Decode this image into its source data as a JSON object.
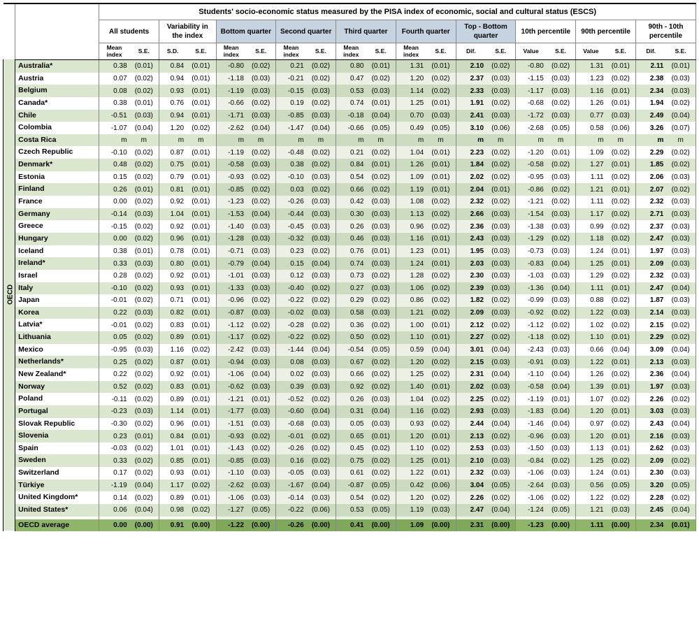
{
  "title": "Students' socio-economic status measured by the PISA index of economic, social and cultural status (ESCS)",
  "side_label": "OECD",
  "groups": [
    {
      "label": "All students",
      "sub": [
        "Mean index",
        "S.E."
      ],
      "shaded": false,
      "bold": [
        false,
        false
      ]
    },
    {
      "label": "Variability in the index",
      "sub": [
        "S.D.",
        "S.E."
      ],
      "shaded": false,
      "bold": [
        false,
        false
      ]
    },
    {
      "label": "Bottom quarter",
      "sub": [
        "Mean index",
        "S.E."
      ],
      "shaded": true,
      "bold": [
        false,
        false
      ]
    },
    {
      "label": "Second quarter",
      "sub": [
        "Mean index",
        "S.E."
      ],
      "shaded": true,
      "bold": [
        false,
        false
      ]
    },
    {
      "label": "Third quarter",
      "sub": [
        "Mean index",
        "S.E."
      ],
      "shaded": true,
      "bold": [
        false,
        false
      ]
    },
    {
      "label": "Fourth quarter",
      "sub": [
        "Mean index",
        "S.E."
      ],
      "shaded": true,
      "bold": [
        false,
        false
      ]
    },
    {
      "label": "Top - Bottom quarter",
      "sub": [
        "Dif.",
        "S.E."
      ],
      "shaded": true,
      "bold": [
        true,
        false
      ]
    },
    {
      "label": "10th percentile",
      "sub": [
        "Value",
        "S.E."
      ],
      "shaded": false,
      "bold": [
        false,
        false
      ]
    },
    {
      "label": "90th percentile",
      "sub": [
        "Value",
        "S.E."
      ],
      "shaded": false,
      "bold": [
        false,
        false
      ]
    },
    {
      "label": "90th - 10th percentile",
      "sub": [
        "Dif.",
        "S.E."
      ],
      "shaded": false,
      "bold": [
        true,
        false
      ]
    }
  ],
  "shaded_groups": [
    2,
    3,
    4,
    5,
    6
  ],
  "bold_value_groups": [
    6,
    9
  ],
  "colors": {
    "stripe": "#dbe6cf",
    "shade_col": "#ecf0e5",
    "stripe_shade": "#cddcc0",
    "avg": "#8fb56a",
    "head_shade": "#c6d3e0"
  },
  "rows": [
    {
      "c": "Australia*",
      "d": [
        "0.38",
        "(0.01)",
        "0.84",
        "(0.01)",
        "-0.80",
        "(0.02)",
        "0.21",
        "(0.02)",
        "0.80",
        "(0.01)",
        "1.31",
        "(0.01)",
        "2.10",
        "(0.02)",
        "-0.80",
        "(0.02)",
        "1.31",
        "(0.01)",
        "2.11",
        "(0.01)"
      ]
    },
    {
      "c": "Austria",
      "d": [
        "0.07",
        "(0.02)",
        "0.94",
        "(0.01)",
        "-1.18",
        "(0.03)",
        "-0.21",
        "(0.02)",
        "0.47",
        "(0.02)",
        "1.20",
        "(0.02)",
        "2.37",
        "(0.03)",
        "-1.15",
        "(0.03)",
        "1.23",
        "(0.02)",
        "2.38",
        "(0.03)"
      ]
    },
    {
      "c": "Belgium",
      "d": [
        "0.08",
        "(0.02)",
        "0.93",
        "(0.01)",
        "-1.19",
        "(0.03)",
        "-0.15",
        "(0.03)",
        "0.53",
        "(0.03)",
        "1.14",
        "(0.02)",
        "2.33",
        "(0.03)",
        "-1.17",
        "(0.03)",
        "1.16",
        "(0.01)",
        "2.34",
        "(0.03)"
      ]
    },
    {
      "c": "Canada*",
      "d": [
        "0.38",
        "(0.01)",
        "0.76",
        "(0.01)",
        "-0.66",
        "(0.02)",
        "0.19",
        "(0.02)",
        "0.74",
        "(0.01)",
        "1.25",
        "(0.01)",
        "1.91",
        "(0.02)",
        "-0.68",
        "(0.02)",
        "1.26",
        "(0.01)",
        "1.94",
        "(0.02)"
      ]
    },
    {
      "c": "Chile",
      "d": [
        "-0.51",
        "(0.03)",
        "0.94",
        "(0.01)",
        "-1.71",
        "(0.03)",
        "-0.85",
        "(0.03)",
        "-0.18",
        "(0.04)",
        "0.70",
        "(0.03)",
        "2.41",
        "(0.03)",
        "-1.72",
        "(0.03)",
        "0.77",
        "(0.03)",
        "2.49",
        "(0.04)"
      ]
    },
    {
      "c": "Colombia",
      "d": [
        "-1.07",
        "(0.04)",
        "1.20",
        "(0.02)",
        "-2.62",
        "(0.04)",
        "-1.47",
        "(0.04)",
        "-0.66",
        "(0.05)",
        "0.49",
        "(0.05)",
        "3.10",
        "(0.06)",
        "-2.68",
        "(0.05)",
        "0.58",
        "(0.06)",
        "3.26",
        "(0.07)"
      ]
    },
    {
      "c": "Costa Rica",
      "d": [
        "m",
        "m",
        "m",
        "m",
        "m",
        "m",
        "m",
        "m",
        "m",
        "m",
        "m",
        "m",
        "m",
        "m",
        "m",
        "m",
        "m",
        "m",
        "m",
        "m"
      ]
    },
    {
      "c": "Czech Republic",
      "d": [
        "-0.10",
        "(0.02)",
        "0.87",
        "(0.01)",
        "-1.19",
        "(0.02)",
        "-0.48",
        "(0.02)",
        "0.21",
        "(0.02)",
        "1.04",
        "(0.01)",
        "2.23",
        "(0.02)",
        "-1.20",
        "(0.01)",
        "1.09",
        "(0.02)",
        "2.29",
        "(0.02)"
      ]
    },
    {
      "c": "Denmark*",
      "d": [
        "0.48",
        "(0.02)",
        "0.75",
        "(0.01)",
        "-0.58",
        "(0.03)",
        "0.38",
        "(0.02)",
        "0.84",
        "(0.01)",
        "1.26",
        "(0.01)",
        "1.84",
        "(0.02)",
        "-0.58",
        "(0.02)",
        "1.27",
        "(0.01)",
        "1.85",
        "(0.02)"
      ]
    },
    {
      "c": "Estonia",
      "d": [
        "0.15",
        "(0.02)",
        "0.79",
        "(0.01)",
        "-0.93",
        "(0.02)",
        "-0.10",
        "(0.03)",
        "0.54",
        "(0.02)",
        "1.09",
        "(0.01)",
        "2.02",
        "(0.02)",
        "-0.95",
        "(0.03)",
        "1.11",
        "(0.02)",
        "2.06",
        "(0.03)"
      ]
    },
    {
      "c": "Finland",
      "d": [
        "0.26",
        "(0.01)",
        "0.81",
        "(0.01)",
        "-0.85",
        "(0.02)",
        "0.03",
        "(0.02)",
        "0.66",
        "(0.02)",
        "1.19",
        "(0.01)",
        "2.04",
        "(0.01)",
        "-0.86",
        "(0.02)",
        "1.21",
        "(0.01)",
        "2.07",
        "(0.02)"
      ]
    },
    {
      "c": "France",
      "d": [
        "0.00",
        "(0.02)",
        "0.92",
        "(0.01)",
        "-1.23",
        "(0.02)",
        "-0.26",
        "(0.03)",
        "0.42",
        "(0.03)",
        "1.08",
        "(0.02)",
        "2.32",
        "(0.02)",
        "-1.21",
        "(0.02)",
        "1.11",
        "(0.02)",
        "2.32",
        "(0.03)"
      ]
    },
    {
      "c": "Germany",
      "d": [
        "-0.14",
        "(0.03)",
        "1.04",
        "(0.01)",
        "-1.53",
        "(0.04)",
        "-0.44",
        "(0.03)",
        "0.30",
        "(0.03)",
        "1.13",
        "(0.02)",
        "2.66",
        "(0.03)",
        "-1.54",
        "(0.03)",
        "1.17",
        "(0.02)",
        "2.71",
        "(0.03)"
      ]
    },
    {
      "c": "Greece",
      "d": [
        "-0.15",
        "(0.02)",
        "0.92",
        "(0.01)",
        "-1.40",
        "(0.03)",
        "-0.45",
        "(0.03)",
        "0.26",
        "(0.03)",
        "0.96",
        "(0.02)",
        "2.36",
        "(0.03)",
        "-1.38",
        "(0.03)",
        "0.99",
        "(0.02)",
        "2.37",
        "(0.03)"
      ]
    },
    {
      "c": "Hungary",
      "d": [
        "0.00",
        "(0.02)",
        "0.96",
        "(0.01)",
        "-1.28",
        "(0.03)",
        "-0.32",
        "(0.03)",
        "0.46",
        "(0.03)",
        "1.16",
        "(0.01)",
        "2.43",
        "(0.03)",
        "-1.29",
        "(0.02)",
        "1.18",
        "(0.02)",
        "2.47",
        "(0.03)"
      ]
    },
    {
      "c": "Iceland",
      "d": [
        "0.38",
        "(0.01)",
        "0.78",
        "(0.01)",
        "-0.71",
        "(0.03)",
        "0.23",
        "(0.02)",
        "0.76",
        "(0.01)",
        "1.23",
        "(0.01)",
        "1.95",
        "(0.03)",
        "-0.73",
        "(0.03)",
        "1.24",
        "(0.01)",
        "1.97",
        "(0.03)"
      ]
    },
    {
      "c": "Ireland*",
      "d": [
        "0.33",
        "(0.03)",
        "0.80",
        "(0.01)",
        "-0.79",
        "(0.04)",
        "0.15",
        "(0.04)",
        "0.74",
        "(0.03)",
        "1.24",
        "(0.01)",
        "2.03",
        "(0.03)",
        "-0.83",
        "(0.04)",
        "1.25",
        "(0.01)",
        "2.09",
        "(0.03)"
      ]
    },
    {
      "c": "Israel",
      "d": [
        "0.28",
        "(0.02)",
        "0.92",
        "(0.01)",
        "-1.01",
        "(0.03)",
        "0.12",
        "(0.03)",
        "0.73",
        "(0.02)",
        "1.28",
        "(0.02)",
        "2.30",
        "(0.03)",
        "-1.03",
        "(0.03)",
        "1.29",
        "(0.02)",
        "2.32",
        "(0.03)"
      ]
    },
    {
      "c": "Italy",
      "d": [
        "-0.10",
        "(0.02)",
        "0.93",
        "(0.01)",
        "-1.33",
        "(0.03)",
        "-0.40",
        "(0.02)",
        "0.27",
        "(0.03)",
        "1.06",
        "(0.02)",
        "2.39",
        "(0.03)",
        "-1.36",
        "(0.04)",
        "1.11",
        "(0.01)",
        "2.47",
        "(0.04)"
      ]
    },
    {
      "c": "Japan",
      "d": [
        "-0.01",
        "(0.02)",
        "0.71",
        "(0.01)",
        "-0.96",
        "(0.02)",
        "-0.22",
        "(0.02)",
        "0.29",
        "(0.02)",
        "0.86",
        "(0.02)",
        "1.82",
        "(0.02)",
        "-0.99",
        "(0.03)",
        "0.88",
        "(0.02)",
        "1.87",
        "(0.03)"
      ]
    },
    {
      "c": "Korea",
      "d": [
        "0.22",
        "(0.03)",
        "0.82",
        "(0.01)",
        "-0.87",
        "(0.03)",
        "-0.02",
        "(0.03)",
        "0.58",
        "(0.03)",
        "1.21",
        "(0.02)",
        "2.09",
        "(0.03)",
        "-0.92",
        "(0.02)",
        "1.22",
        "(0.03)",
        "2.14",
        "(0.03)"
      ]
    },
    {
      "c": "Latvia*",
      "d": [
        "-0.01",
        "(0.02)",
        "0.83",
        "(0.01)",
        "-1.12",
        "(0.02)",
        "-0.28",
        "(0.02)",
        "0.36",
        "(0.02)",
        "1.00",
        "(0.01)",
        "2.12",
        "(0.02)",
        "-1.12",
        "(0.02)",
        "1.02",
        "(0.02)",
        "2.15",
        "(0.02)"
      ]
    },
    {
      "c": "Lithuania",
      "d": [
        "0.05",
        "(0.02)",
        "0.89",
        "(0.01)",
        "-1.17",
        "(0.02)",
        "-0.22",
        "(0.02)",
        "0.50",
        "(0.02)",
        "1.10",
        "(0.01)",
        "2.27",
        "(0.02)",
        "-1.18",
        "(0.02)",
        "1.10",
        "(0.01)",
        "2.29",
        "(0.02)"
      ]
    },
    {
      "c": "Mexico",
      "d": [
        "-0.95",
        "(0.03)",
        "1.16",
        "(0.02)",
        "-2.42",
        "(0.03)",
        "-1.44",
        "(0.04)",
        "-0.54",
        "(0.05)",
        "0.59",
        "(0.04)",
        "3.01",
        "(0.04)",
        "-2.43",
        "(0.03)",
        "0.66",
        "(0.04)",
        "3.09",
        "(0.04)"
      ]
    },
    {
      "c": "Netherlands*",
      "d": [
        "0.25",
        "(0.02)",
        "0.87",
        "(0.01)",
        "-0.94",
        "(0.03)",
        "0.08",
        "(0.03)",
        "0.67",
        "(0.02)",
        "1.20",
        "(0.02)",
        "2.15",
        "(0.03)",
        "-0.91",
        "(0.03)",
        "1.22",
        "(0.01)",
        "2.13",
        "(0.03)"
      ]
    },
    {
      "c": "New Zealand*",
      "d": [
        "0.22",
        "(0.02)",
        "0.92",
        "(0.01)",
        "-1.06",
        "(0.04)",
        "0.02",
        "(0.03)",
        "0.66",
        "(0.02)",
        "1.25",
        "(0.02)",
        "2.31",
        "(0.04)",
        "-1.10",
        "(0.04)",
        "1.26",
        "(0.02)",
        "2.36",
        "(0.04)"
      ]
    },
    {
      "c": "Norway",
      "d": [
        "0.52",
        "(0.02)",
        "0.83",
        "(0.01)",
        "-0.62",
        "(0.03)",
        "0.39",
        "(0.03)",
        "0.92",
        "(0.02)",
        "1.40",
        "(0.01)",
        "2.02",
        "(0.03)",
        "-0.58",
        "(0.04)",
        "1.39",
        "(0.01)",
        "1.97",
        "(0.03)"
      ]
    },
    {
      "c": "Poland",
      "d": [
        "-0.11",
        "(0.02)",
        "0.89",
        "(0.01)",
        "-1.21",
        "(0.01)",
        "-0.52",
        "(0.02)",
        "0.26",
        "(0.03)",
        "1.04",
        "(0.02)",
        "2.25",
        "(0.02)",
        "-1.19",
        "(0.01)",
        "1.07",
        "(0.02)",
        "2.26",
        "(0.02)"
      ]
    },
    {
      "c": "Portugal",
      "d": [
        "-0.23",
        "(0.03)",
        "1.14",
        "(0.01)",
        "-1.77",
        "(0.03)",
        "-0.60",
        "(0.04)",
        "0.31",
        "(0.04)",
        "1.16",
        "(0.02)",
        "2.93",
        "(0.03)",
        "-1.83",
        "(0.04)",
        "1.20",
        "(0.01)",
        "3.03",
        "(0.03)"
      ]
    },
    {
      "c": "Slovak Republic",
      "d": [
        "-0.30",
        "(0.02)",
        "0.96",
        "(0.01)",
        "-1.51",
        "(0.03)",
        "-0.68",
        "(0.03)",
        "0.05",
        "(0.03)",
        "0.93",
        "(0.02)",
        "2.44",
        "(0.04)",
        "-1.46",
        "(0.04)",
        "0.97",
        "(0.02)",
        "2.43",
        "(0.04)"
      ]
    },
    {
      "c": "Slovenia",
      "d": [
        "0.23",
        "(0.01)",
        "0.84",
        "(0.01)",
        "-0.93",
        "(0.02)",
        "-0.01",
        "(0.02)",
        "0.65",
        "(0.01)",
        "1.20",
        "(0.01)",
        "2.13",
        "(0.02)",
        "-0.96",
        "(0.03)",
        "1.20",
        "(0.01)",
        "2.16",
        "(0.03)"
      ]
    },
    {
      "c": "Spain",
      "d": [
        "-0.03",
        "(0.02)",
        "1.01",
        "(0.01)",
        "-1.43",
        "(0.02)",
        "-0.26",
        "(0.02)",
        "0.45",
        "(0.02)",
        "1.10",
        "(0.02)",
        "2.53",
        "(0.03)",
        "-1.50",
        "(0.03)",
        "1.13",
        "(0.01)",
        "2.62",
        "(0.03)"
      ]
    },
    {
      "c": "Sweden",
      "d": [
        "0.33",
        "(0.02)",
        "0.85",
        "(0.01)",
        "-0.85",
        "(0.03)",
        "0.16",
        "(0.02)",
        "0.75",
        "(0.02)",
        "1.25",
        "(0.01)",
        "2.10",
        "(0.03)",
        "-0.84",
        "(0.02)",
        "1.25",
        "(0.02)",
        "2.09",
        "(0.02)"
      ]
    },
    {
      "c": "Switzerland",
      "d": [
        "0.17",
        "(0.02)",
        "0.93",
        "(0.01)",
        "-1.10",
        "(0.03)",
        "-0.05",
        "(0.03)",
        "0.61",
        "(0.02)",
        "1.22",
        "(0.01)",
        "2.32",
        "(0.03)",
        "-1.06",
        "(0.03)",
        "1.24",
        "(0.01)",
        "2.30",
        "(0.03)"
      ]
    },
    {
      "c": "Türkiye",
      "d": [
        "-1.19",
        "(0.04)",
        "1.17",
        "(0.02)",
        "-2.62",
        "(0.03)",
        "-1.67",
        "(0.04)",
        "-0.87",
        "(0.05)",
        "0.42",
        "(0.06)",
        "3.04",
        "(0.05)",
        "-2.64",
        "(0.03)",
        "0.56",
        "(0.05)",
        "3.20",
        "(0.05)"
      ]
    },
    {
      "c": "United Kingdom*",
      "d": [
        "0.14",
        "(0.02)",
        "0.89",
        "(0.01)",
        "-1.06",
        "(0.03)",
        "-0.14",
        "(0.03)",
        "0.54",
        "(0.02)",
        "1.20",
        "(0.02)",
        "2.26",
        "(0.02)",
        "-1.06",
        "(0.02)",
        "1.22",
        "(0.02)",
        "2.28",
        "(0.02)"
      ]
    },
    {
      "c": "United States*",
      "d": [
        "0.06",
        "(0.04)",
        "0.98",
        "(0.02)",
        "-1.27",
        "(0.05)",
        "-0.22",
        "(0.06)",
        "0.53",
        "(0.05)",
        "1.19",
        "(0.03)",
        "2.47",
        "(0.04)",
        "-1.24",
        "(0.05)",
        "1.21",
        "(0.03)",
        "2.45",
        "(0.04)"
      ]
    }
  ],
  "average": {
    "c": "OECD average",
    "d": [
      "0.00",
      "(0.00)",
      "0.91",
      "(0.00)",
      "-1.22",
      "(0.00)",
      "-0.26",
      "(0.00)",
      "0.41",
      "(0.00)",
      "1.09",
      "(0.00)",
      "2.31",
      "(0.00)",
      "-1.23",
      "(0.00)",
      "1.11",
      "(0.00)",
      "2.34",
      "(0.01)"
    ]
  }
}
